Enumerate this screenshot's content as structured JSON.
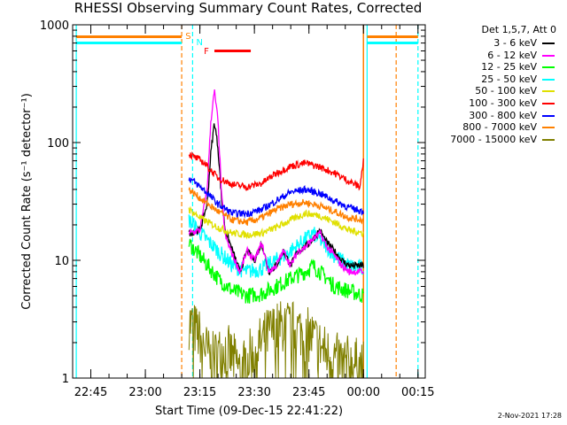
{
  "chart_data": {
    "type": "line",
    "title": "RHESSI Observing Summary Count Rates, Corrected",
    "xlabel": "Start Time (09-Dec-15 22:41:22)",
    "ylabel": "Corrected Count Rate (s⁻¹ detector⁻¹)",
    "yscale": "log",
    "ylim": [
      1,
      1000
    ],
    "y_ticks": [
      "1",
      "10",
      "100",
      "1000"
    ],
    "xlim_minutes_from_2240": [
      0,
      97
    ],
    "x_ticks": [
      {
        "label": "22:45",
        "minute": 5
      },
      {
        "label": "23:00",
        "minute": 20
      },
      {
        "label": "23:15",
        "minute": 35
      },
      {
        "label": "23:30",
        "minute": 50
      },
      {
        "label": "23:45",
        "minute": 65
      },
      {
        "label": "00:00",
        "minute": 80
      },
      {
        "label": "00:15",
        "minute": 95
      }
    ],
    "detector_info": "Det 1,5,7, Att 0",
    "markers": [
      {
        "label": "S",
        "color": "#ff8000"
      },
      {
        "label": "N",
        "color": "#00ffff"
      },
      {
        "label": "F",
        "color": "#ff0000"
      }
    ],
    "series": [
      {
        "name": "3 - 6 keV",
        "color": "#000000",
        "minute_range": [
          32,
          80
        ],
        "points": [
          [
            32,
            17
          ],
          [
            35,
            18
          ],
          [
            37,
            30
          ],
          [
            38,
            80
          ],
          [
            39,
            150
          ],
          [
            40,
            90
          ],
          [
            41,
            32
          ],
          [
            42,
            18
          ],
          [
            44,
            12
          ],
          [
            46,
            8
          ],
          [
            48,
            12
          ],
          [
            50,
            10
          ],
          [
            52,
            14
          ],
          [
            54,
            8
          ],
          [
            56,
            9
          ],
          [
            58,
            12
          ],
          [
            60,
            9
          ],
          [
            62,
            12
          ],
          [
            64,
            13
          ],
          [
            66,
            15
          ],
          [
            68,
            18
          ],
          [
            70,
            14
          ],
          [
            72,
            12
          ],
          [
            74,
            10
          ],
          [
            76,
            9
          ],
          [
            78,
            9
          ],
          [
            80,
            9
          ]
        ]
      },
      {
        "name": "6 - 12 keV",
        "color": "#ff00ff",
        "minute_range": [
          32,
          80
        ],
        "points": [
          [
            32,
            17
          ],
          [
            35,
            18
          ],
          [
            37,
            40
          ],
          [
            38,
            150
          ],
          [
            39,
            275
          ],
          [
            40,
            150
          ],
          [
            41,
            35
          ],
          [
            42,
            16
          ],
          [
            44,
            11
          ],
          [
            46,
            8
          ],
          [
            48,
            12
          ],
          [
            50,
            10
          ],
          [
            52,
            14
          ],
          [
            54,
            8
          ],
          [
            56,
            9
          ],
          [
            58,
            12
          ],
          [
            60,
            9
          ],
          [
            62,
            12
          ],
          [
            64,
            13
          ],
          [
            66,
            15
          ],
          [
            68,
            17
          ],
          [
            70,
            13
          ],
          [
            72,
            11
          ],
          [
            74,
            9
          ],
          [
            76,
            8
          ],
          [
            78,
            8
          ],
          [
            80,
            8
          ]
        ]
      },
      {
        "name": "12 - 25 keV",
        "color": "#00ff00",
        "minute_range": [
          32,
          80
        ],
        "points": [
          [
            32,
            14
          ],
          [
            36,
            10
          ],
          [
            40,
            7
          ],
          [
            44,
            5.5
          ],
          [
            48,
            5
          ],
          [
            52,
            5.2
          ],
          [
            56,
            6
          ],
          [
            60,
            7
          ],
          [
            64,
            8
          ],
          [
            66,
            9
          ],
          [
            68,
            8
          ],
          [
            70,
            7
          ],
          [
            72,
            6
          ],
          [
            76,
            5.5
          ],
          [
            80,
            5
          ]
        ]
      },
      {
        "name": "25 - 50 keV",
        "color": "#00ffff",
        "minute_range": [
          32,
          80
        ],
        "points": [
          [
            32,
            22
          ],
          [
            36,
            16
          ],
          [
            40,
            12
          ],
          [
            44,
            9
          ],
          [
            48,
            8
          ],
          [
            52,
            8.5
          ],
          [
            56,
            10
          ],
          [
            60,
            12
          ],
          [
            64,
            15
          ],
          [
            66,
            17
          ],
          [
            68,
            15
          ],
          [
            70,
            13
          ],
          [
            72,
            11
          ],
          [
            76,
            9
          ],
          [
            80,
            8.5
          ]
        ]
      },
      {
        "name": "50 - 100 keV",
        "color": "#e0e000",
        "minute_range": [
          32,
          80
        ],
        "points": [
          [
            32,
            27
          ],
          [
            36,
            22
          ],
          [
            40,
            19
          ],
          [
            44,
            17
          ],
          [
            48,
            16.5
          ],
          [
            52,
            17
          ],
          [
            56,
            19
          ],
          [
            60,
            22
          ],
          [
            64,
            25
          ],
          [
            68,
            24
          ],
          [
            72,
            21
          ],
          [
            76,
            18
          ],
          [
            80,
            17
          ]
        ]
      },
      {
        "name": "100 - 300 keV",
        "color": "#ff0000",
        "minute_range": [
          32,
          80
        ],
        "points": [
          [
            32,
            80
          ],
          [
            36,
            68
          ],
          [
            40,
            50
          ],
          [
            44,
            44
          ],
          [
            48,
            42
          ],
          [
            52,
            45
          ],
          [
            56,
            55
          ],
          [
            60,
            63
          ],
          [
            64,
            67
          ],
          [
            68,
            62
          ],
          [
            72,
            55
          ],
          [
            76,
            47
          ],
          [
            79,
            42
          ],
          [
            80,
            70
          ]
        ]
      },
      {
        "name": "300 - 800 keV",
        "color": "#0000ff",
        "minute_range": [
          32,
          80
        ],
        "points": [
          [
            32,
            50
          ],
          [
            36,
            40
          ],
          [
            40,
            30
          ],
          [
            44,
            25
          ],
          [
            48,
            25
          ],
          [
            52,
            27
          ],
          [
            56,
            32
          ],
          [
            60,
            38
          ],
          [
            64,
            40
          ],
          [
            68,
            37
          ],
          [
            72,
            32
          ],
          [
            76,
            28
          ],
          [
            80,
            26
          ]
        ]
      },
      {
        "name": "800 - 7000 keV",
        "color": "#ff8000",
        "minute_range": [
          32,
          80
        ],
        "points": [
          [
            32,
            40
          ],
          [
            36,
            32
          ],
          [
            40,
            26
          ],
          [
            44,
            22
          ],
          [
            48,
            21
          ],
          [
            52,
            23
          ],
          [
            56,
            27
          ],
          [
            60,
            30
          ],
          [
            64,
            31
          ],
          [
            68,
            29
          ],
          [
            72,
            26
          ],
          [
            76,
            23
          ],
          [
            80,
            22
          ]
        ]
      },
      {
        "name": "7000 - 15000 keV",
        "color": "#808000",
        "minute_range": [
          32,
          80
        ],
        "points": [
          [
            32,
            3
          ],
          [
            34,
            2.5
          ],
          [
            36,
            2
          ],
          [
            38,
            1.4
          ],
          [
            42,
            1.8
          ],
          [
            46,
            1.2
          ],
          [
            50,
            1.7
          ],
          [
            54,
            2.4
          ],
          [
            58,
            2.8
          ],
          [
            62,
            2.6
          ],
          [
            66,
            2.2
          ],
          [
            70,
            1.6
          ],
          [
            74,
            1.4
          ],
          [
            78,
            1.3
          ],
          [
            80,
            1.2
          ]
        ]
      }
    ],
    "legend_position": "right"
  },
  "footer_date": "2-Nov-2021 17:28"
}
